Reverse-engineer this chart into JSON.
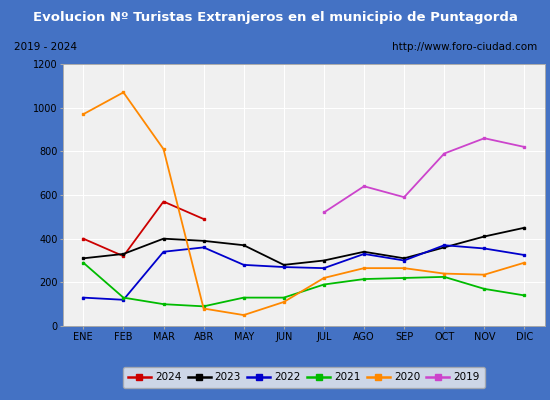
{
  "title": "Evolucion Nº Turistas Extranjeros en el municipio de Puntagorda",
  "subtitle_left": "2019 - 2024",
  "subtitle_right": "http://www.foro-ciudad.com",
  "x_labels": [
    "ENE",
    "FEB",
    "MAR",
    "ABR",
    "MAY",
    "JUN",
    "JUL",
    "AGO",
    "SEP",
    "OCT",
    "NOV",
    "DIC"
  ],
  "ylim": [
    0,
    1200
  ],
  "yticks": [
    0,
    200,
    400,
    600,
    800,
    1000,
    1200
  ],
  "series": {
    "2024": {
      "color": "#cc0000",
      "values": [
        400,
        320,
        570,
        490,
        null,
        null,
        null,
        null,
        null,
        null,
        null,
        null
      ]
    },
    "2023": {
      "color": "#000000",
      "values": [
        310,
        330,
        400,
        390,
        370,
        280,
        300,
        340,
        310,
        360,
        410,
        450
      ]
    },
    "2022": {
      "color": "#0000cc",
      "values": [
        130,
        120,
        340,
        360,
        280,
        270,
        265,
        330,
        300,
        370,
        355,
        325
      ]
    },
    "2021": {
      "color": "#00bb00",
      "values": [
        290,
        130,
        100,
        90,
        130,
        130,
        190,
        215,
        220,
        225,
        170,
        140
      ]
    },
    "2020": {
      "color": "#ff8800",
      "values": [
        970,
        1070,
        810,
        80,
        50,
        110,
        220,
        265,
        265,
        240,
        235,
        290
      ]
    },
    "2019": {
      "color": "#cc44cc",
      "values": [
        null,
        null,
        null,
        null,
        null,
        null,
        520,
        640,
        590,
        790,
        860,
        820
      ]
    }
  },
  "title_bg_color": "#4472c4",
  "title_font_color": "#ffffff",
  "subtitle_bg_color": "#e8e8e8",
  "plot_bg_color": "#f0f0f0",
  "grid_color": "#ffffff",
  "border_color": "#4472c4",
  "legend_order": [
    "2024",
    "2023",
    "2022",
    "2021",
    "2020",
    "2019"
  ],
  "title_fontsize": 9.5,
  "subtitle_fontsize": 7.5,
  "tick_fontsize": 7,
  "legend_fontsize": 7.5
}
